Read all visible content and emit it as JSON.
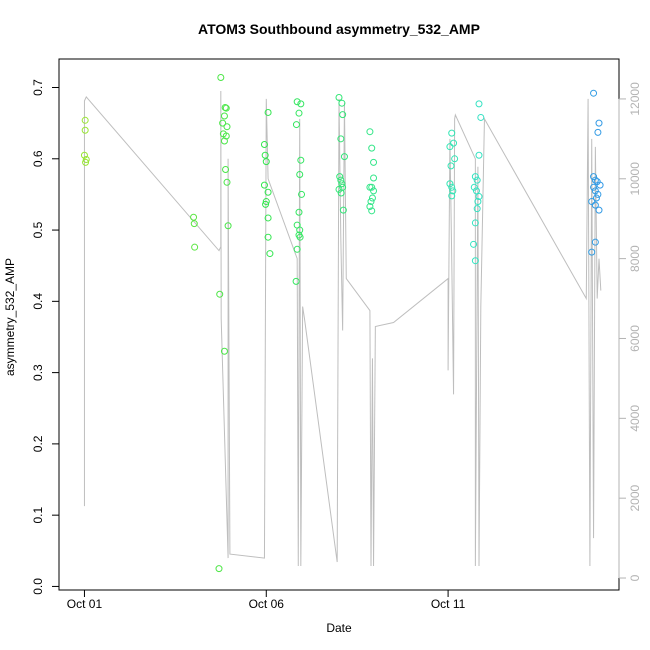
{
  "chart_data": {
    "type": "scatter",
    "title": "ATOM3 Southbound asymmetry_532_AMP",
    "xlabel": "Date",
    "ylabel": "asymmetry_532_AMP",
    "x_unit": "days from Oct 01",
    "xlim": [
      -0.7,
      14.7
    ],
    "ylim": [
      -0.005,
      0.74
    ],
    "y2lim": [
      -300,
      13000
    ],
    "x_ticks": [
      {
        "value": 0,
        "label": "Oct 01"
      },
      {
        "value": 5,
        "label": "Oct 06"
      },
      {
        "value": 10,
        "label": "Oct 11"
      }
    ],
    "y_ticks": [
      {
        "value": 0.0,
        "label": "0.0"
      },
      {
        "value": 0.1,
        "label": "0.1"
      },
      {
        "value": 0.2,
        "label": "0.2"
      },
      {
        "value": 0.3,
        "label": "0.3"
      },
      {
        "value": 0.4,
        "label": "0.4"
      },
      {
        "value": 0.5,
        "label": "0.5"
      },
      {
        "value": 0.6,
        "label": "0.6"
      },
      {
        "value": 0.7,
        "label": "0.7"
      }
    ],
    "y2_ticks": [
      {
        "value": 0,
        "label": "0"
      },
      {
        "value": 2000,
        "label": "2000"
      },
      {
        "value": 4000,
        "label": "4000"
      },
      {
        "value": 6000,
        "label": "6000"
      },
      {
        "value": 8000,
        "label": "8000"
      },
      {
        "value": 10000,
        "label": "10000"
      },
      {
        "value": 12000,
        "label": "12000"
      }
    ],
    "grid": false,
    "colors": {
      "points_start": "#99e633",
      "points_mid": "#33e64d",
      "points_mid2": "#33e6c0",
      "points_end": "#3399e6",
      "altitude_line": "#bebebe"
    },
    "series": [
      {
        "type": "scatter",
        "values": [
          [
            0.02,
            0.654
          ],
          [
            0.02,
            0.64
          ],
          [
            0.0,
            0.605
          ],
          [
            0.03,
            0.595
          ],
          [
            0.05,
            0.599
          ],
          [
            3.0,
            0.518
          ],
          [
            3.02,
            0.509
          ],
          [
            3.03,
            0.476
          ],
          [
            3.75,
            0.714
          ],
          [
            3.8,
            0.65
          ],
          [
            3.82,
            0.635
          ],
          [
            3.85,
            0.66
          ],
          [
            3.87,
            0.672
          ],
          [
            3.9,
            0.671
          ],
          [
            3.92,
            0.645
          ],
          [
            3.9,
            0.632
          ],
          [
            3.85,
            0.625
          ],
          [
            3.88,
            0.585
          ],
          [
            3.92,
            0.567
          ],
          [
            3.95,
            0.506
          ],
          [
            3.72,
            0.41
          ],
          [
            3.85,
            0.33
          ],
          [
            3.7,
            0.025
          ],
          [
            4.95,
            0.62
          ],
          [
            4.97,
            0.605
          ],
          [
            5.0,
            0.596
          ],
          [
            5.05,
            0.665
          ],
          [
            4.95,
            0.563
          ],
          [
            5.0,
            0.54
          ],
          [
            4.98,
            0.536
          ],
          [
            5.05,
            0.553
          ],
          [
            5.05,
            0.517
          ],
          [
            5.05,
            0.49
          ],
          [
            5.1,
            0.467
          ],
          [
            5.85,
            0.68
          ],
          [
            5.9,
            0.664
          ],
          [
            5.95,
            0.677
          ],
          [
            5.83,
            0.648
          ],
          [
            5.95,
            0.598
          ],
          [
            5.92,
            0.578
          ],
          [
            5.97,
            0.55
          ],
          [
            5.9,
            0.525
          ],
          [
            5.85,
            0.507
          ],
          [
            5.92,
            0.5
          ],
          [
            5.9,
            0.493
          ],
          [
            5.93,
            0.49
          ],
          [
            5.85,
            0.473
          ],
          [
            5.82,
            0.428
          ],
          [
            7.0,
            0.686
          ],
          [
            7.08,
            0.678
          ],
          [
            7.1,
            0.662
          ],
          [
            7.05,
            0.628
          ],
          [
            7.15,
            0.603
          ],
          [
            7.02,
            0.575
          ],
          [
            7.05,
            0.57
          ],
          [
            7.08,
            0.565
          ],
          [
            7.1,
            0.56
          ],
          [
            7.0,
            0.557
          ],
          [
            7.06,
            0.552
          ],
          [
            7.12,
            0.528
          ],
          [
            7.85,
            0.638
          ],
          [
            7.9,
            0.615
          ],
          [
            7.95,
            0.595
          ],
          [
            7.95,
            0.573
          ],
          [
            7.85,
            0.56
          ],
          [
            7.9,
            0.56
          ],
          [
            7.95,
            0.555
          ],
          [
            7.92,
            0.545
          ],
          [
            7.88,
            0.54
          ],
          [
            7.85,
            0.533
          ],
          [
            7.9,
            0.527
          ],
          [
            10.1,
            0.636
          ],
          [
            10.15,
            0.622
          ],
          [
            10.05,
            0.617
          ],
          [
            10.18,
            0.6
          ],
          [
            10.08,
            0.59
          ],
          [
            10.05,
            0.565
          ],
          [
            10.1,
            0.56
          ],
          [
            10.13,
            0.555
          ],
          [
            10.1,
            0.548
          ],
          [
            10.85,
            0.677
          ],
          [
            10.9,
            0.658
          ],
          [
            10.85,
            0.605
          ],
          [
            10.75,
            0.575
          ],
          [
            10.8,
            0.57
          ],
          [
            10.72,
            0.56
          ],
          [
            10.78,
            0.555
          ],
          [
            10.85,
            0.547
          ],
          [
            10.82,
            0.54
          ],
          [
            10.8,
            0.53
          ],
          [
            10.75,
            0.51
          ],
          [
            10.7,
            0.48
          ],
          [
            10.75,
            0.457
          ],
          [
            14.0,
            0.692
          ],
          [
            14.15,
            0.65
          ],
          [
            14.12,
            0.637
          ],
          [
            14.0,
            0.575
          ],
          [
            14.05,
            0.57
          ],
          [
            14.1,
            0.568
          ],
          [
            14.18,
            0.563
          ],
          [
            14.0,
            0.56
          ],
          [
            14.05,
            0.555
          ],
          [
            14.12,
            0.55
          ],
          [
            14.08,
            0.545
          ],
          [
            13.95,
            0.54
          ],
          [
            14.05,
            0.535
          ],
          [
            14.15,
            0.528
          ],
          [
            14.05,
            0.483
          ],
          [
            13.95,
            0.469
          ]
        ]
      },
      {
        "type": "line",
        "axis": "right",
        "values": [
          [
            0.0,
            1800
          ],
          [
            0.0,
            11950
          ],
          [
            0.05,
            12050
          ],
          [
            3.7,
            8200
          ],
          [
            3.75,
            8300
          ],
          [
            3.75,
            12200
          ],
          [
            3.76,
            6500
          ],
          [
            3.95,
            500
          ],
          [
            3.95,
            10500
          ],
          [
            4.0,
            600
          ],
          [
            4.95,
            500
          ],
          [
            5.0,
            12000
          ],
          [
            5.05,
            10000
          ],
          [
            5.85,
            8000
          ],
          [
            5.88,
            300
          ],
          [
            5.92,
            11500
          ],
          [
            5.95,
            300
          ],
          [
            6.0,
            6800
          ],
          [
            6.05,
            6500
          ],
          [
            6.95,
            400
          ],
          [
            7.0,
            12000
          ],
          [
            7.05,
            8500
          ],
          [
            7.1,
            6200
          ],
          [
            7.15,
            11900
          ],
          [
            7.2,
            7500
          ],
          [
            7.85,
            6700
          ],
          [
            7.88,
            300
          ],
          [
            7.92,
            5500
          ],
          [
            7.95,
            300
          ],
          [
            8.0,
            6300
          ],
          [
            8.5,
            6400
          ],
          [
            10.0,
            7500
          ],
          [
            10.0,
            5200
          ],
          [
            10.05,
            11000
          ],
          [
            10.1,
            8000
          ],
          [
            10.15,
            4600
          ],
          [
            10.18,
            11500
          ],
          [
            10.2,
            11600
          ],
          [
            10.75,
            10500
          ],
          [
            10.75,
            300
          ],
          [
            10.82,
            10300
          ],
          [
            10.85,
            300
          ],
          [
            10.9,
            6800
          ],
          [
            11.0,
            11500
          ],
          [
            13.8,
            7000
          ],
          [
            13.85,
            12000
          ],
          [
            13.9,
            300
          ],
          [
            13.95,
            11000
          ],
          [
            14.0,
            1000
          ],
          [
            14.05,
            10800
          ],
          [
            14.1,
            7000
          ],
          [
            14.15,
            8000
          ],
          [
            14.2,
            7200
          ]
        ]
      }
    ]
  }
}
